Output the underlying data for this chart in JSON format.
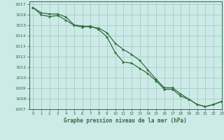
{
  "title": "Graphe pression niveau de la mer (hPa)",
  "background_color": "#cceae7",
  "grid_color": "#aaccbb",
  "line_color": "#2d6e3e",
  "marker_color": "#2d6e3e",
  "xlim": [
    -0.5,
    23
  ],
  "ylim": [
    1007,
    1017.3
  ],
  "xticks": [
    0,
    1,
    2,
    3,
    4,
    5,
    6,
    7,
    8,
    9,
    10,
    11,
    12,
    13,
    14,
    15,
    16,
    17,
    18,
    19,
    20,
    21,
    22,
    23
  ],
  "yticks": [
    1007,
    1008,
    1009,
    1010,
    1011,
    1012,
    1013,
    1014,
    1015,
    1016,
    1017
  ],
  "x": [
    0,
    1,
    2,
    3,
    4,
    5,
    6,
    7,
    8,
    9,
    10,
    11,
    12,
    13,
    14,
    15,
    16,
    17,
    18,
    19,
    20,
    21,
    22,
    23
  ],
  "line1": [
    1016.7,
    1016.2,
    1016.1,
    1016.1,
    1015.8,
    1015.05,
    1014.95,
    1014.85,
    1014.75,
    1014.3,
    1013.3,
    1012.7,
    1012.25,
    1011.65,
    1010.75,
    1009.85,
    1009.05,
    1009.05,
    1008.45,
    1007.95,
    1007.45,
    1007.25,
    1007.45,
    1007.75
  ],
  "line2": [
    1016.7,
    1016.0,
    1015.85,
    1015.95,
    1015.5,
    1015.0,
    1014.85,
    1014.95,
    1014.6,
    1013.9,
    1012.4,
    1011.5,
    1011.4,
    1010.9,
    1010.4,
    1009.7,
    1008.9,
    1008.9,
    1008.25,
    1007.95,
    1007.45,
    1007.25,
    1007.45,
    1007.75
  ]
}
